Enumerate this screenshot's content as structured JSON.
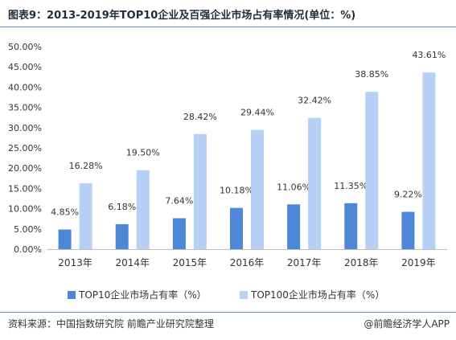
{
  "header": {
    "title": "图表9：2013-2019年TOP10企业及百强企业市场占有率情况(单位：%)"
  },
  "chart_data": {
    "type": "bar",
    "categories": [
      "2013年",
      "2014年",
      "2015年",
      "2016年",
      "2017年",
      "2018年",
      "2019年"
    ],
    "series": [
      {
        "name": "TOP10企业市场占有率（%）",
        "color": "#4e87d6",
        "values": [
          4.85,
          6.18,
          7.64,
          10.18,
          11.06,
          11.35,
          9.22
        ],
        "labels": [
          "4.85%",
          "6.18%",
          "7.64%",
          "10.18%",
          "11.06%",
          "11.35%",
          "9.22%"
        ]
      },
      {
        "name": "TOP100企业市场占有率（%）",
        "color": "#b6d1f5",
        "values": [
          16.28,
          19.5,
          28.42,
          29.44,
          32.42,
          38.85,
          43.61
        ],
        "labels": [
          "16.28%",
          "19.50%",
          "28.42%",
          "29.44%",
          "32.42%",
          "38.85%",
          "43.61%"
        ]
      }
    ],
    "ylim": [
      0,
      50
    ],
    "yticks": [
      "0.00%",
      "5.00%",
      "10.00%",
      "15.00%",
      "20.00%",
      "25.00%",
      "30.00%",
      "35.00%",
      "40.00%",
      "45.00%",
      "50.00%"
    ],
    "grid": false,
    "legend": "bottom"
  },
  "footer": {
    "source": "资料来源：中国指数研究院   前瞻产业研究院整理",
    "brand": "@前瞻经济学人APP"
  }
}
